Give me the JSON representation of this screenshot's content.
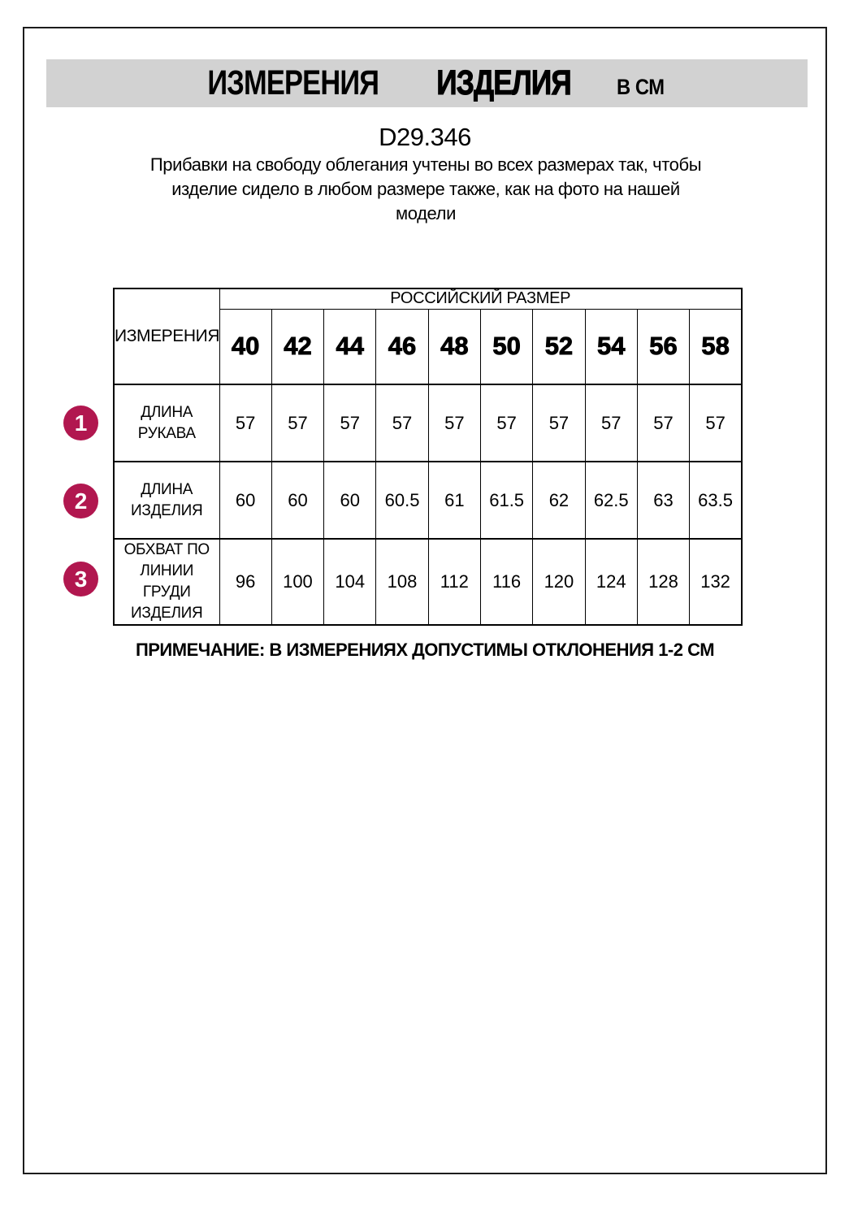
{
  "page": {
    "title": {
      "word1": "ИЗМЕРЕНИЯ",
      "word2": "ИЗДЕЛИЯ",
      "unit": "В СМ"
    },
    "product_code": "D29.346",
    "description": "Прибавки на свободу облегания учтены во всех размерах так, чтобы\nизделие сидело в любом размере также, как на фото на нашей\nмодели",
    "note": "ПРИМЕЧАНИЕ: В ИЗМЕРЕНИЯХ ДОПУСТИМЫ ОТКЛОНЕНИЯ 1-2 СМ"
  },
  "table": {
    "corner_header": "ИЗМЕРЕНИЯ",
    "size_group_header": "РОССИЙСКИЙ РАЗМЕР",
    "sizes": [
      "40",
      "42",
      "44",
      "46",
      "48",
      "50",
      "52",
      "54",
      "56",
      "58"
    ],
    "rows": [
      {
        "num": "1",
        "label": "ДЛИНА\nРУКАВА",
        "values": [
          "57",
          "57",
          "57",
          "57",
          "57",
          "57",
          "57",
          "57",
          "57",
          "57"
        ]
      },
      {
        "num": "2",
        "label": "ДЛИНА\nИЗДЕЛИЯ",
        "values": [
          "60",
          "60",
          "60",
          "60.5",
          "61",
          "61.5",
          "62",
          "62.5",
          "63",
          "63.5"
        ]
      },
      {
        "num": "3",
        "label": "ОБХВАТ ПО\nЛИНИИ\nГРУДИ\nИЗДЕЛИЯ",
        "values": [
          "96",
          "100",
          "104",
          "108",
          "112",
          "116",
          "120",
          "124",
          "128",
          "132"
        ]
      }
    ]
  },
  "colors": {
    "accent_circle": "#b1174f",
    "title_bar_bg": "#d2d2d2",
    "border": "#1c1c1c"
  }
}
